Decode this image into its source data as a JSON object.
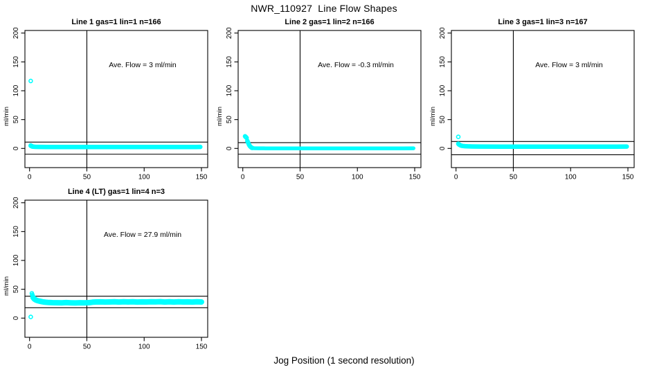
{
  "title": "NWR_110927  Line Flow Shapes",
  "xlabel": "Jog Position (1 second resolution)",
  "colors": {
    "points": "#00ffff",
    "axis": "#000000",
    "background": "#ffffff",
    "text": "#000000"
  },
  "axes": {
    "xticks": [
      0,
      50,
      100,
      150
    ],
    "yticks": [
      0,
      50,
      100,
      150,
      200
    ],
    "ylabel": "ml/min",
    "xlim": [
      0,
      150
    ],
    "ylim": [
      0,
      200
    ]
  },
  "chart_data": [
    {
      "type": "scatter",
      "panel": 1,
      "title": "Line 1 gas=1 lin=1 n=166",
      "ave_flow_text": "Ave. Flow =  3  ml/min",
      "ave_flow_value": 3,
      "n": 166,
      "vline_x": 50,
      "hlines": [
        11,
        -10
      ],
      "outliers": [
        [
          1,
          117
        ],
        [
          1,
          5
        ],
        [
          1.6,
          4.5
        ],
        [
          2.2,
          4
        ]
      ],
      "band": [
        [
          1,
          4.5
        ],
        [
          2,
          3.5
        ],
        [
          3,
          3
        ],
        [
          5,
          2.8
        ],
        [
          8,
          2.6
        ],
        [
          15,
          2.5
        ],
        [
          30,
          2.5
        ],
        [
          50,
          2.5
        ],
        [
          70,
          2.4
        ],
        [
          90,
          2.5
        ],
        [
          110,
          2.5
        ],
        [
          130,
          2.5
        ],
        [
          145,
          2.5
        ],
        [
          149,
          2.7
        ]
      ],
      "band_thickness_px": 6.5
    },
    {
      "type": "scatter",
      "panel": 2,
      "title": "Line 2 gas=1 lin=2 n=166",
      "ave_flow_text": "Ave. Flow =  -0.3  ml/min",
      "ave_flow_value": -0.3,
      "n": 166,
      "vline_x": 50,
      "hlines": [
        10,
        -10
      ],
      "outliers": [
        [
          2,
          21
        ],
        [
          2.4,
          20.2
        ],
        [
          2.8,
          19.4
        ],
        [
          3.3,
          18.3
        ],
        [
          4,
          13
        ],
        [
          4.4,
          11
        ],
        [
          4.8,
          9.5
        ],
        [
          5.2,
          7.5
        ],
        [
          5.7,
          5.5
        ],
        [
          6.2,
          4
        ],
        [
          6.7,
          3
        ],
        [
          7.2,
          2
        ],
        [
          7.7,
          1.3
        ],
        [
          8.2,
          0.8
        ]
      ],
      "band": [
        [
          8,
          0.8
        ],
        [
          10,
          0.4
        ],
        [
          14,
          0.2
        ],
        [
          20,
          0.1
        ],
        [
          40,
          0.1
        ],
        [
          60,
          0
        ],
        [
          80,
          0.1
        ],
        [
          100,
          0
        ],
        [
          120,
          0.1
        ],
        [
          140,
          0.1
        ],
        [
          149,
          0.3
        ]
      ],
      "band_thickness_px": 5.5
    },
    {
      "type": "scatter",
      "panel": 3,
      "title": "Line 3 gas=1 lin=3 n=167",
      "ave_flow_text": "Ave. Flow =  3  ml/min",
      "ave_flow_value": 3,
      "n": 167,
      "vline_x": 50,
      "hlines": [
        12,
        -11
      ],
      "outliers": [
        [
          2,
          20
        ],
        [
          2,
          8
        ],
        [
          2.5,
          7
        ],
        [
          3,
          6.3
        ],
        [
          3.5,
          5.8
        ]
      ],
      "band": [
        [
          4,
          5
        ],
        [
          5,
          4.6
        ],
        [
          6,
          4.2
        ],
        [
          8,
          3.8
        ],
        [
          10,
          3.6
        ],
        [
          14,
          3.4
        ],
        [
          20,
          3.2
        ],
        [
          40,
          3.1
        ],
        [
          60,
          3.1
        ],
        [
          80,
          3.1
        ],
        [
          100,
          3.1
        ],
        [
          120,
          3.1
        ],
        [
          140,
          3.1
        ],
        [
          149,
          3.3
        ]
      ],
      "band_thickness_px": 6.5
    },
    {
      "type": "scatter",
      "panel": 4,
      "title": "Line 4 (LT) gas=1 lin=4 n=3",
      "ave_flow_text": "Ave. Flow =  27.9  ml/min",
      "ave_flow_value": 27.9,
      "n": 3,
      "vline_x": 50,
      "hlines": [
        38,
        18
      ],
      "outliers": [
        [
          1,
          2
        ],
        [
          2,
          43
        ],
        [
          2.4,
          40.5
        ],
        [
          2.8,
          38.5
        ]
      ],
      "band": [
        [
          3,
          36
        ],
        [
          4,
          33.5
        ],
        [
          5,
          32
        ],
        [
          6,
          31
        ],
        [
          7,
          30.3
        ],
        [
          8,
          29.8
        ],
        [
          10,
          28.8
        ],
        [
          12,
          28
        ],
        [
          14,
          27.5
        ],
        [
          17,
          27
        ],
        [
          20,
          26.8
        ],
        [
          24,
          26.6
        ],
        [
          28,
          26.5
        ],
        [
          32,
          26.9
        ],
        [
          36,
          26.5
        ],
        [
          40,
          26.3
        ],
        [
          44,
          26.7
        ],
        [
          48,
          26.4
        ],
        [
          52,
          26.8
        ],
        [
          55,
          27.6
        ],
        [
          58,
          28
        ],
        [
          62,
          28.1
        ],
        [
          66,
          27.8
        ],
        [
          70,
          28
        ],
        [
          74,
          28.2
        ],
        [
          78,
          27.9
        ],
        [
          82,
          28.2
        ],
        [
          86,
          28
        ],
        [
          90,
          28.3
        ],
        [
          94,
          27.9
        ],
        [
          98,
          28.1
        ],
        [
          102,
          28
        ],
        [
          106,
          28.3
        ],
        [
          110,
          28.1
        ],
        [
          114,
          28.4
        ],
        [
          118,
          27.9
        ],
        [
          122,
          28.2
        ],
        [
          126,
          27.8
        ],
        [
          130,
          28.2
        ],
        [
          134,
          28
        ],
        [
          138,
          28.1
        ],
        [
          142,
          27.9
        ],
        [
          146,
          28.2
        ],
        [
          150,
          28
        ]
      ],
      "band_thickness_px": 8
    }
  ]
}
